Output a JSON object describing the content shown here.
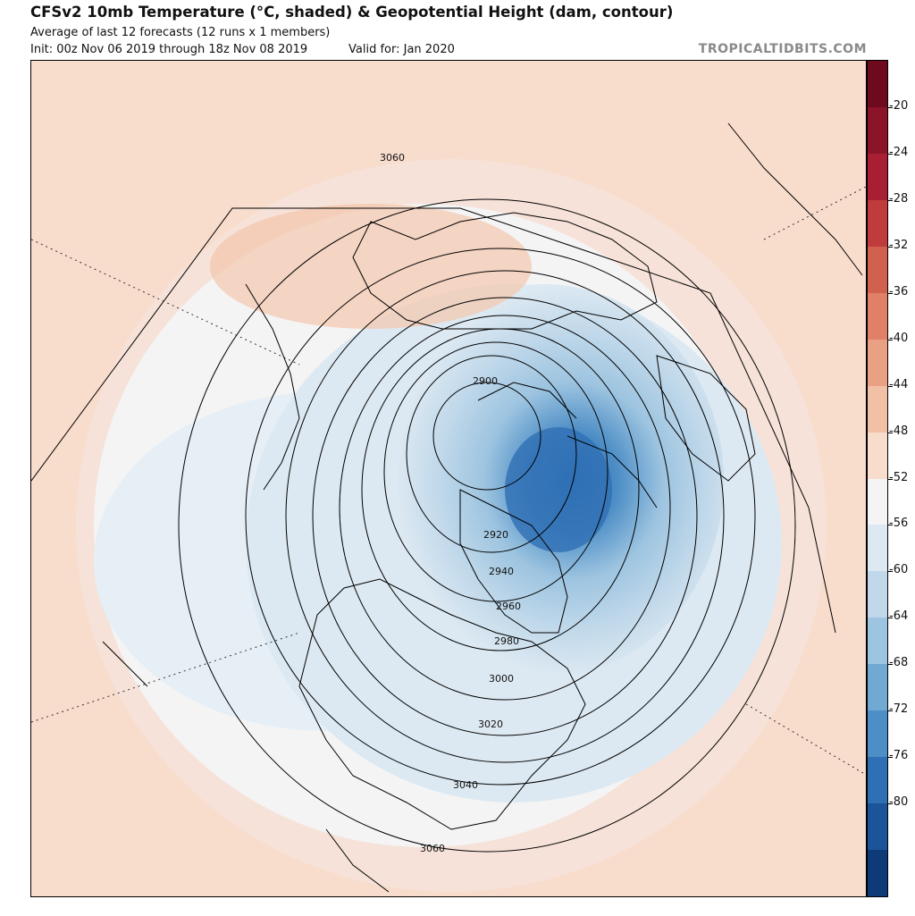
{
  "header": {
    "title": "CFSv2 10mb Temperature (°C, shaded) & Geopotential Height (dam, contour)",
    "subtitle": "Average of last 12 forecasts (12 runs x 1 members)",
    "init": "Init: 00z Nov 06 2019 through 18z Nov 08 2019",
    "valid": "Valid for: Jan 2020",
    "brand": "TROPICALTIDBITS.COM"
  },
  "colorbar": {
    "ticks": [
      "-20",
      "-24",
      "-28",
      "-32",
      "-36",
      "-40",
      "-44",
      "-48",
      "-52",
      "-56",
      "-60",
      "-64",
      "-68",
      "-72",
      "-76",
      "-80"
    ],
    "colors": [
      "#6e0a1e",
      "#8c1428",
      "#a81e32",
      "#c03c3c",
      "#d2604f",
      "#e08066",
      "#eaa082",
      "#f2c0a4",
      "#f8dccc",
      "#f4f4f4",
      "#dde9f2",
      "#c0d8ea",
      "#9dc4e0",
      "#72a9d3",
      "#4d8ec6",
      "#2f6fb4",
      "#1c5499",
      "#0e3a78"
    ]
  },
  "map": {
    "contours": [
      {
        "label": "2900"
      },
      {
        "label": "2920"
      },
      {
        "label": "2940"
      },
      {
        "label": "2960"
      },
      {
        "label": "2980"
      },
      {
        "label": "3000"
      },
      {
        "label": "3020"
      },
      {
        "label": "3040"
      },
      {
        "label": "3060"
      },
      {
        "label": "3060"
      }
    ]
  }
}
